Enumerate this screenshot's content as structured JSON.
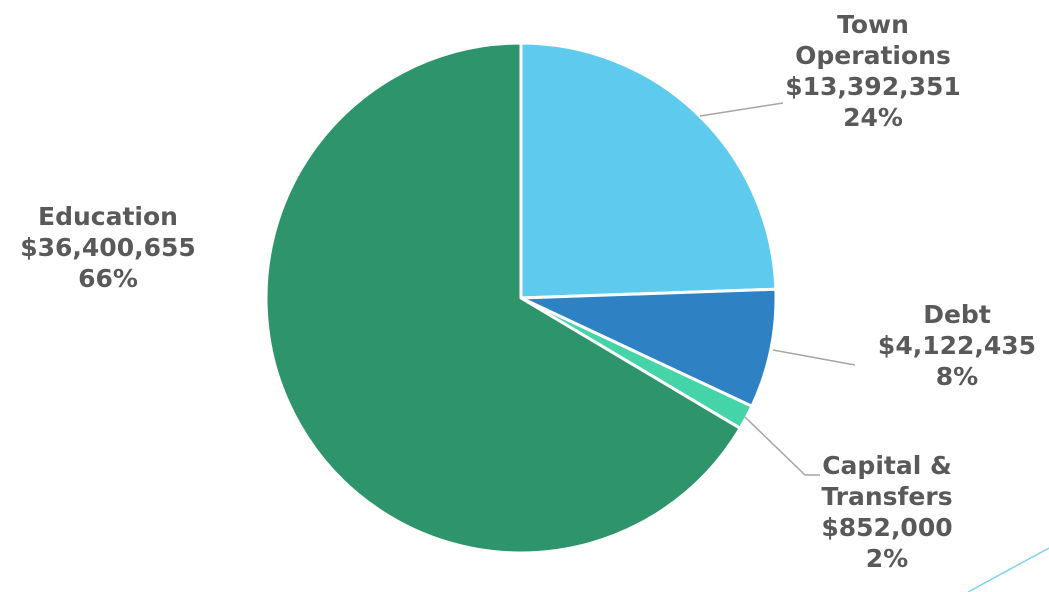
{
  "chart_data": {
    "type": "pie",
    "slices": [
      {
        "label_lines": [
          "Town",
          "Operations"
        ],
        "value_text": "$13,392,351",
        "percent_text": "24%",
        "value": 13392351,
        "color": "#5ecbee"
      },
      {
        "label_lines": [
          "Debt"
        ],
        "value_text": "$4,122,435",
        "percent_text": "8%",
        "value": 4122435,
        "color": "#2e82c3"
      },
      {
        "label_lines": [
          "Capital &",
          "Transfers"
        ],
        "value_text": "$852,000",
        "percent_text": "2%",
        "value": 852000,
        "color": "#44d4a8"
      },
      {
        "label_lines": [
          "Education"
        ],
        "value_text": "$36,400,655",
        "percent_text": "66%",
        "value": 36400655,
        "color": "#2e946c"
      }
    ],
    "start_angle_deg": 0,
    "direction": "clockwise",
    "leader_line_color": "#a6a6a6",
    "separator_color": "#ffffff",
    "decor_line_color": "#7fd3f0"
  }
}
